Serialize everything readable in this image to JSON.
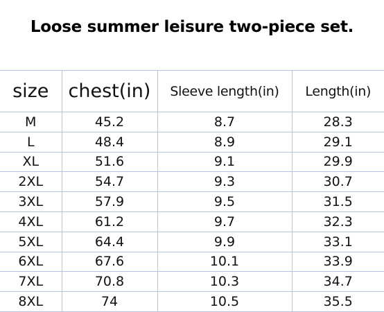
{
  "title": "Loose summer leisure two-piece set.",
  "table": {
    "headers": [
      "size",
      "chest(in)",
      "Sleeve length(in)",
      "Length(in)"
    ],
    "rows": [
      [
        "M",
        "45.2",
        "8.7",
        "28.3"
      ],
      [
        "L",
        "48.4",
        "8.9",
        "29.1"
      ],
      [
        "XL",
        "51.6",
        "9.1",
        "29.9"
      ],
      [
        "2XL",
        "54.7",
        "9.3",
        "30.7"
      ],
      [
        "3XL",
        "57.9",
        "9.5",
        "31.5"
      ],
      [
        "4XL",
        "61.2",
        "9.7",
        "32.3"
      ],
      [
        "5XL",
        "64.4",
        "9.9",
        "33.1"
      ],
      [
        "6XL",
        "67.6",
        "10.1",
        "33.9"
      ],
      [
        "7XL",
        "70.8",
        "10.3",
        "34.7"
      ],
      [
        "8XL",
        "74",
        "10.5",
        "35.5"
      ]
    ]
  },
  "colors": {
    "grid_line": "#b9c4e2",
    "text": "#111111"
  }
}
